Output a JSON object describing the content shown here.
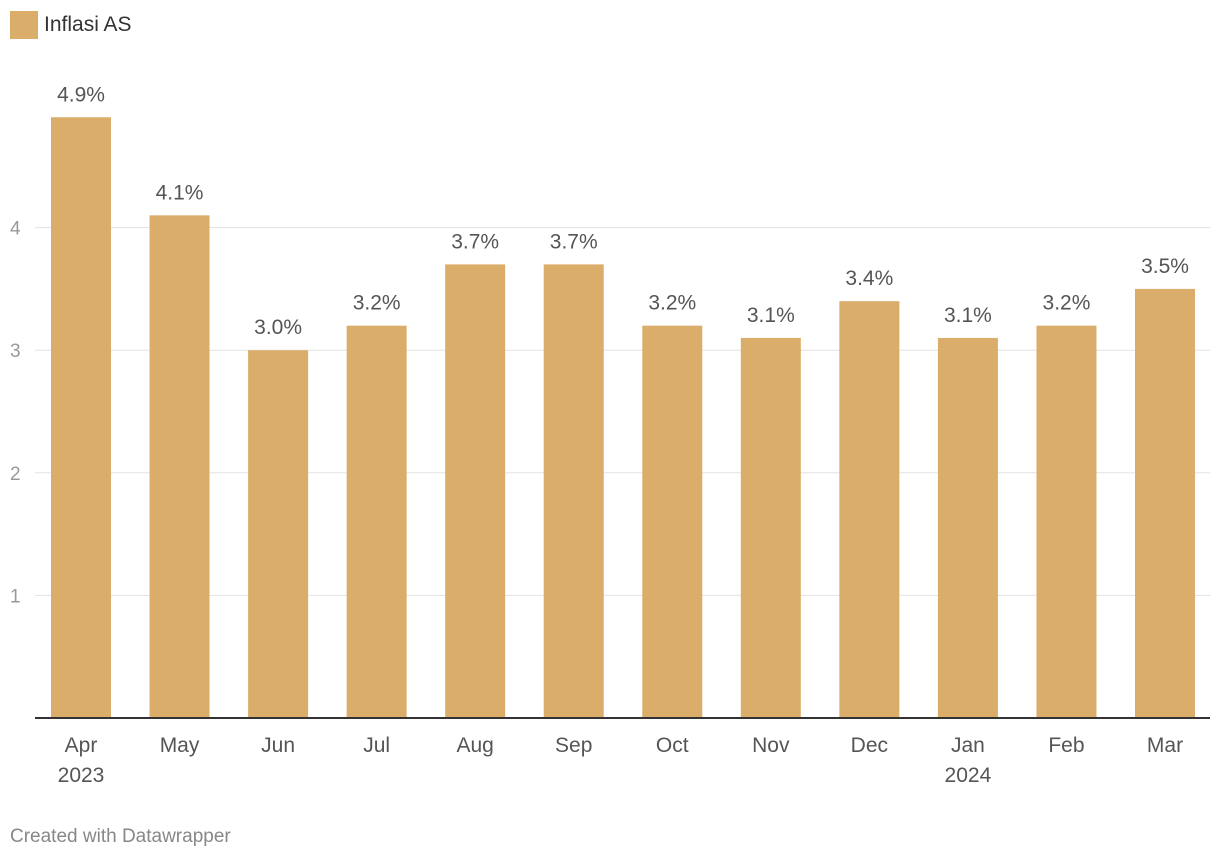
{
  "legend": {
    "label": "Inflasi AS",
    "color": "#dbad6a"
  },
  "footer": {
    "credit": "Created with Datawrapper"
  },
  "chart_data": {
    "type": "bar",
    "title": "",
    "xlabel": "",
    "ylabel": "",
    "ylim": [
      0,
      5
    ],
    "yticks": [
      1,
      2,
      3,
      4
    ],
    "grid": true,
    "legend_position": "top-left",
    "bar_color": "#dbad6a",
    "categories": [
      "Apr",
      "May",
      "Jun",
      "Jul",
      "Aug",
      "Sep",
      "Oct",
      "Nov",
      "Dec",
      "Jan",
      "Feb",
      "Mar"
    ],
    "category_sublabels": [
      "2023",
      "",
      "",
      "",
      "",
      "",
      "",
      "",
      "",
      "2024",
      "",
      ""
    ],
    "series": [
      {
        "name": "Inflasi AS",
        "values": [
          4.9,
          4.1,
          3.0,
          3.2,
          3.7,
          3.7,
          3.2,
          3.1,
          3.4,
          3.1,
          3.2,
          3.5
        ],
        "labels": [
          "4.9%",
          "4.1%",
          "3.0%",
          "3.2%",
          "3.7%",
          "3.7%",
          "3.2%",
          "3.1%",
          "3.4%",
          "3.1%",
          "3.2%",
          "3.5%"
        ]
      }
    ]
  }
}
